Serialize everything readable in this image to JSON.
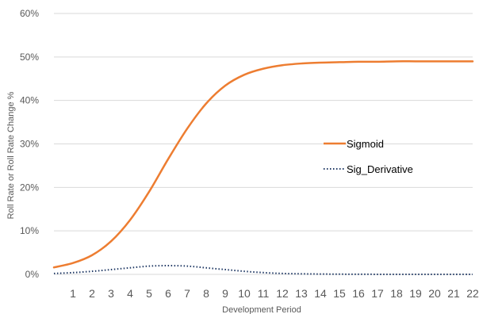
{
  "chart_data": {
    "type": "line",
    "xlabel": "Development Period",
    "ylabel": "Roll Rate or Roll Rate Change %",
    "ylim": [
      0,
      60
    ],
    "ytick_labels": [
      "0%",
      "10%",
      "20%",
      "30%",
      "40%",
      "50%",
      "60%"
    ],
    "ytick_values": [
      0,
      10,
      20,
      30,
      40,
      50,
      60
    ],
    "categories": [
      "1",
      "2",
      "3",
      "4",
      "5",
      "6",
      "7",
      "8",
      "9",
      "10",
      "11",
      "12",
      "13",
      "14",
      "15",
      "16",
      "17",
      "18",
      "19",
      "20",
      "21",
      "22"
    ],
    "x": [
      0,
      1,
      2,
      3,
      4,
      5,
      6,
      7,
      8,
      9,
      10,
      11,
      12,
      13,
      14,
      15,
      16,
      17,
      18,
      19,
      20,
      21,
      22
    ],
    "grid": true,
    "legend_position": "right-middle",
    "series": [
      {
        "name": "Sigmoid",
        "color": "#ED7D31",
        "style": "solid",
        "values": [
          1.6,
          2.6,
          4.4,
          7.6,
          12.5,
          19.0,
          26.5,
          33.5,
          39.3,
          43.4,
          45.9,
          47.3,
          48.1,
          48.5,
          48.7,
          48.8,
          48.9,
          48.9,
          49.0,
          49.0,
          49.0,
          49.0,
          49.0
        ]
      },
      {
        "name": "Sig_Derivative",
        "color": "#1F3864",
        "style": "dotted",
        "values": [
          0.2,
          0.4,
          0.7,
          1.1,
          1.5,
          1.9,
          2.0,
          1.9,
          1.5,
          1.1,
          0.7,
          0.4,
          0.2,
          0.12,
          0.07,
          0.04,
          0.02,
          0.01,
          0.0,
          0.0,
          0.0,
          0.0,
          0.0
        ]
      }
    ]
  }
}
